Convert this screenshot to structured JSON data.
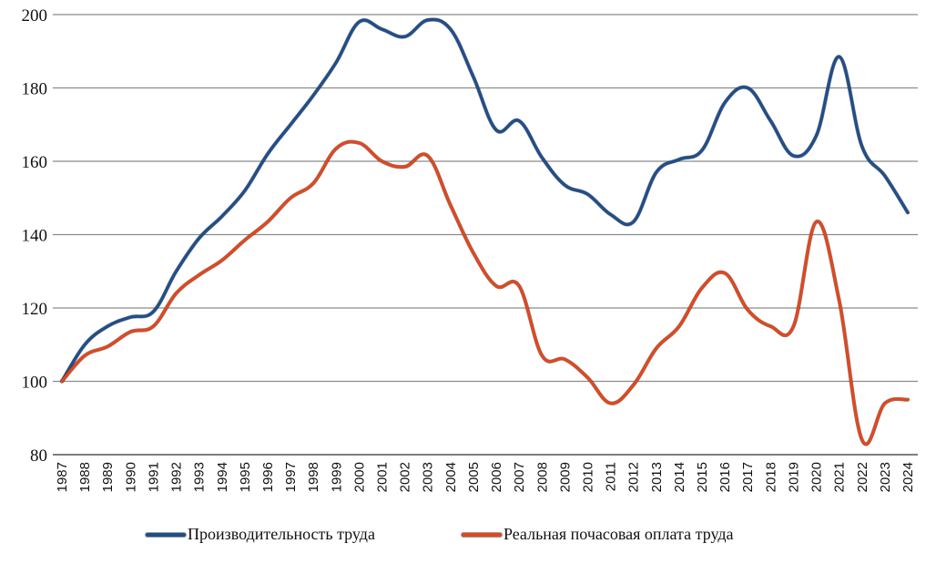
{
  "chart_data": {
    "type": "line",
    "title": "",
    "xlabel": "",
    "ylabel": "",
    "ylim": [
      80,
      200
    ],
    "yticks": [
      80,
      100,
      120,
      140,
      160,
      180,
      200
    ],
    "grid": "horizontal",
    "legend_position": "bottom",
    "x": [
      1987,
      1988,
      1989,
      1990,
      1991,
      1992,
      1993,
      1994,
      1995,
      1996,
      1997,
      1998,
      1999,
      2000,
      2001,
      2002,
      2003,
      2004,
      2005,
      2006,
      2007,
      2008,
      2009,
      2010,
      2011,
      2012,
      2013,
      2014,
      2015,
      2016,
      2017,
      2018,
      2019,
      2020,
      2021,
      2022,
      2023,
      2024
    ],
    "series": [
      {
        "name": "Производительность труда",
        "color": "#1f4e8c",
        "values": [
          100,
          110,
          115,
          117.5,
          119,
          130,
          139,
          145,
          152,
          162,
          170,
          178,
          187,
          198,
          196,
          194,
          198.5,
          196,
          183,
          168.5,
          171,
          161,
          153.5,
          151,
          145.5,
          143.5,
          157,
          160.5,
          163,
          176,
          180,
          171,
          161.5,
          167,
          188.5,
          164,
          156,
          146
        ]
      },
      {
        "name": "Реальная почасовая оплата труда",
        "color": "#e2471e",
        "values": [
          100,
          107,
          109.5,
          113.5,
          115,
          124,
          129,
          133,
          138.5,
          143.5,
          150,
          154,
          163.5,
          165,
          160,
          158.5,
          161.5,
          148,
          135,
          126,
          126,
          107,
          106,
          101,
          94,
          99,
          109,
          115,
          125.5,
          129.5,
          119.5,
          115,
          115,
          143.5,
          122,
          84,
          94,
          95
        ]
      }
    ]
  },
  "legend": {
    "items": [
      {
        "label": "Производительность труда",
        "color": "#1f4e8c"
      },
      {
        "label": "Реальная почасовая оплата труда",
        "color": "#e2471e"
      }
    ]
  }
}
